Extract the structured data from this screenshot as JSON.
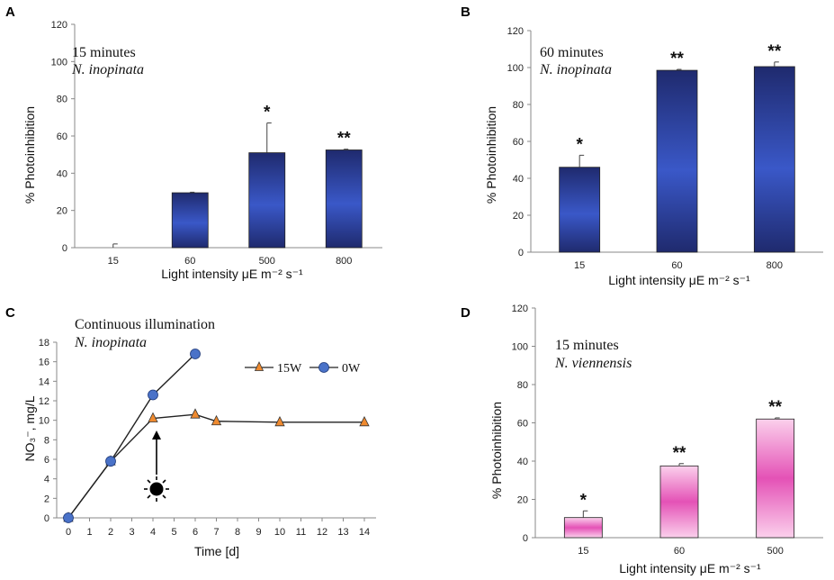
{
  "chart_data": [
    {
      "panel": "A",
      "type": "bar",
      "annotation": [
        "15 minutes",
        "N. inopinata"
      ],
      "categories": [
        "15",
        "60",
        "500",
        "800"
      ],
      "values": [
        0,
        29.5,
        51,
        52.5
      ],
      "errors": [
        2,
        0.3,
        16,
        0.4
      ],
      "significance": [
        "",
        "",
        "*",
        "**"
      ],
      "xlabel": "Light intensity μE m⁻² s⁻¹",
      "ylabel": "% Photoinhibition",
      "ylim": [
        0,
        120
      ],
      "yticks": [
        0,
        20,
        40,
        60,
        80,
        100,
        120
      ],
      "colors": {
        "base": "#1f2a6e",
        "mid": "#3550c0"
      }
    },
    {
      "panel": "B",
      "type": "bar",
      "annotation": [
        "60 minutes",
        "N. inopinata"
      ],
      "categories": [
        "15",
        "60",
        "800"
      ],
      "values": [
        46,
        98.5,
        100.5
      ],
      "errors": [
        6.5,
        0.5,
        2.5
      ],
      "significance": [
        "*",
        "**",
        "**"
      ],
      "xlabel": "Light intensity μE m⁻² s⁻¹",
      "ylabel": "% Photoinhibition",
      "ylim": [
        0,
        120
      ],
      "yticks": [
        0,
        20,
        40,
        60,
        80,
        100,
        120
      ],
      "colors": {
        "base": "#1f2a6e",
        "mid": "#3550c0"
      }
    },
    {
      "panel": "C",
      "type": "line",
      "annotation": [
        "Continuous illumination",
        "N. inopinata"
      ],
      "xlabel": "Time [d]",
      "ylabel": "NO₃⁻, mg/L",
      "xlim": [
        0,
        14
      ],
      "xticks": [
        0,
        1,
        2,
        3,
        4,
        5,
        6,
        7,
        8,
        9,
        10,
        11,
        12,
        13,
        14
      ],
      "ylim": [
        0,
        18
      ],
      "yticks": [
        0,
        2,
        4,
        6,
        8,
        10,
        12,
        14,
        16,
        18
      ],
      "series": [
        {
          "name": "15W",
          "marker": "triangle",
          "color": "#ef8a2f",
          "x": [
            0,
            2,
            4,
            6,
            7,
            10,
            14
          ],
          "y": [
            0,
            5.8,
            10.2,
            10.6,
            9.9,
            9.8,
            9.8
          ]
        },
        {
          "name": "0W",
          "marker": "circle",
          "color": "#4a72c8",
          "x": [
            0,
            2,
            4,
            6
          ],
          "y": [
            0,
            5.8,
            12.6,
            16.8
          ]
        }
      ],
      "light_on_day": 4,
      "legend_position": "top-right"
    },
    {
      "panel": "D",
      "type": "bar",
      "annotation": [
        "15 minutes",
        "N. viennensis"
      ],
      "categories": [
        "15",
        "60",
        "500"
      ],
      "values": [
        10.5,
        37.5,
        62
      ],
      "errors": [
        3.5,
        1.2,
        0.6
      ],
      "significance": [
        "*",
        "**",
        "**"
      ],
      "xlabel": "Light intensity μE m⁻² s⁻¹",
      "ylabel": "% Photoinhibition",
      "ylim": [
        0,
        120
      ],
      "yticks": [
        0,
        20,
        40,
        60,
        80,
        100,
        120
      ],
      "colors": {
        "base": "#e04fb0",
        "mid": "#fbd0ec"
      }
    }
  ]
}
